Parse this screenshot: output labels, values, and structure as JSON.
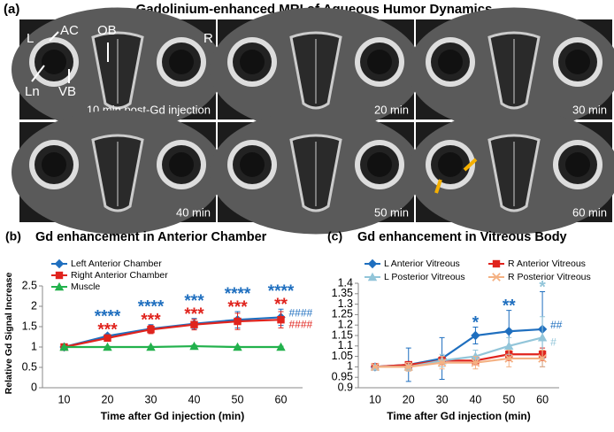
{
  "figure": {
    "panel_label": "(a)",
    "title": "Gadolinium-enhanced MRI of Aqueous Humor Dynamics",
    "image_labels": [
      "10 min post-Gd injection",
      "20 min",
      "30 min",
      "40 min",
      "50 min",
      "60 min"
    ],
    "annotations": {
      "left": "L",
      "right": "R",
      "ac": "AC",
      "ob": "OB",
      "ln": "Ln",
      "vb": "VB"
    }
  },
  "chart_data": [
    {
      "type": "line",
      "panel_label": "(b)",
      "title": "Gd enhancement in Anterior Chamber",
      "x_label": "Time after Gd injection (min)",
      "y_label": "Relative Gd Signal Increase",
      "categories": [
        "10",
        "20",
        "30",
        "40",
        "50",
        "60"
      ],
      "ylim": [
        0,
        2.5
      ],
      "yticks": [
        0,
        0.5,
        1,
        1.5,
        2,
        2.5
      ],
      "legend": "upper left",
      "legend_columns": 1,
      "series": [
        {
          "name": "Left Anterior Chamber",
          "color": "#1f6fbf",
          "marker": "diamond",
          "values": [
            1,
            1.27,
            1.45,
            1.57,
            1.67,
            1.73
          ],
          "errors": [
            0.02,
            0.05,
            0.1,
            0.13,
            0.2,
            0.2
          ],
          "stars": [
            null,
            "****",
            "****",
            "***",
            "****",
            "****"
          ],
          "end_label": "####"
        },
        {
          "name": "Right Anterior Chamber",
          "color": "#e0231d",
          "marker": "square",
          "values": [
            1,
            1.22,
            1.43,
            1.55,
            1.63,
            1.67
          ],
          "errors": [
            0.02,
            0.05,
            0.1,
            0.13,
            0.2,
            0.2
          ],
          "stars": [
            null,
            "***",
            "***",
            "***",
            "***",
            "**"
          ],
          "end_label": "####"
        },
        {
          "name": "Muscle",
          "color": "#22b14c",
          "marker": "triangle",
          "values": [
            1,
            1,
            1,
            1.02,
            1,
            1
          ],
          "errors": [
            0.02,
            0.02,
            0.02,
            0.03,
            0.02,
            0.02
          ]
        }
      ]
    },
    {
      "type": "line",
      "panel_label": "(c)",
      "title": "Gd enhancement in Vitreous Body",
      "x_label": "Time after Gd injection (min)",
      "categories": [
        "10",
        "20",
        "30",
        "40",
        "50",
        "60"
      ],
      "ylim": [
        0.9,
        1.4
      ],
      "yticks": [
        0.9,
        0.95,
        1,
        1.05,
        1.1,
        1.15,
        1.2,
        1.25,
        1.3,
        1.35,
        1.4
      ],
      "legend": "top",
      "legend_columns": 2,
      "series": [
        {
          "name": "L Anterior Vitreous",
          "color": "#1f6fbf",
          "marker": "diamond",
          "values": [
            1,
            1.01,
            1.04,
            1.15,
            1.17,
            1.18
          ],
          "errors": [
            0,
            0.08,
            0.1,
            0.04,
            0.1,
            0.18
          ],
          "stars": [
            null,
            null,
            null,
            "*",
            "**",
            null
          ],
          "end_label": "##"
        },
        {
          "name": "R Anterior Vitreous",
          "color": "#e0231d",
          "marker": "square",
          "values": [
            1,
            1.01,
            1.03,
            1.03,
            1.06,
            1.06
          ],
          "errors": [
            0,
            0.01,
            0.02,
            0.02,
            0.03,
            0.03
          ]
        },
        {
          "name": "L Posterior Vitreous",
          "color": "#92c5d9",
          "marker": "triangle",
          "values": [
            1,
            1,
            1.03,
            1.05,
            1.1,
            1.14
          ],
          "errors": [
            0,
            0.02,
            0.03,
            0.03,
            0.04,
            0.1
          ],
          "stars": [
            null,
            null,
            null,
            null,
            null,
            "*"
          ],
          "end_label": "#"
        },
        {
          "name": "R Posterior Vitreous",
          "color": "#f4b183",
          "marker": "cross",
          "values": [
            1,
            1,
            1.02,
            1.02,
            1.04,
            1.04
          ],
          "errors": [
            0,
            0.02,
            0.03,
            0.03,
            0.04,
            0.04
          ]
        }
      ]
    }
  ]
}
